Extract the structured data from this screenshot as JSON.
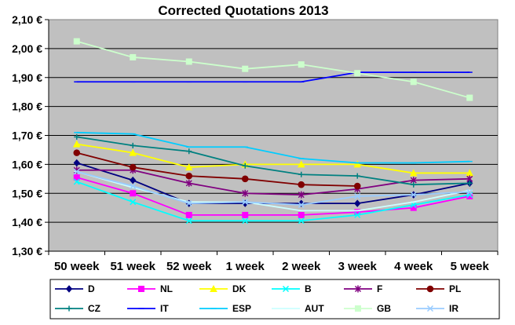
{
  "chart_data": {
    "type": "line",
    "title": "Corrected Quotations 2013",
    "xlabel": "",
    "ylabel": "",
    "categories": [
      "50 week",
      "51 week",
      "52 week",
      "1 week",
      "2 week",
      "3 week",
      "4 week",
      "5 week"
    ],
    "yticks": [
      "1,30 €",
      "1,40 €",
      "1,50 €",
      "1,60 €",
      "1,70 €",
      "1,80 €",
      "1,90 €",
      "2,00 €",
      "2,10 €"
    ],
    "ylim": [
      1.3,
      2.1
    ],
    "grid": "horizontal",
    "legend_position": "bottom",
    "plot_background": "#c0c0c0",
    "series": [
      {
        "name": "D",
        "color": "#000080",
        "marker": "diamond",
        "values": [
          1.605,
          1.545,
          1.465,
          1.465,
          1.465,
          1.465,
          1.495,
          1.535
        ]
      },
      {
        "name": "NL",
        "color": "#ff00ff",
        "marker": "square",
        "values": [
          1.555,
          1.5,
          1.425,
          1.425,
          1.425,
          1.435,
          1.45,
          1.49
        ]
      },
      {
        "name": "DK",
        "color": "#ffff00",
        "marker": "triangle",
        "values": [
          1.67,
          1.64,
          1.59,
          1.6,
          1.6,
          1.6,
          1.57,
          1.57
        ]
      },
      {
        "name": "B",
        "color": "#00ffff",
        "marker": "x",
        "values": [
          1.54,
          1.47,
          1.405,
          1.405,
          1.405,
          1.425,
          1.46,
          1.495
        ]
      },
      {
        "name": "F",
        "color": "#800080",
        "marker": "star",
        "values": [
          1.58,
          1.58,
          1.535,
          1.5,
          1.495,
          1.515,
          1.545,
          1.55
        ]
      },
      {
        "name": "PL",
        "color": "#800000",
        "marker": "circle",
        "values": [
          1.64,
          1.59,
          1.56,
          1.55,
          1.53,
          1.525,
          null,
          null
        ]
      },
      {
        "name": "CZ",
        "color": "#008080",
        "marker": "plus",
        "values": [
          1.695,
          1.665,
          1.645,
          1.595,
          1.565,
          1.56,
          1.53,
          1.535
        ]
      },
      {
        "name": "IT",
        "color": "#0000ff",
        "marker": "dash",
        "values": [
          1.885,
          1.885,
          1.885,
          1.885,
          1.885,
          1.918,
          1.918,
          1.918
        ]
      },
      {
        "name": "ESP",
        "color": "#00ccff",
        "marker": "dash",
        "values": [
          1.71,
          1.705,
          1.66,
          1.66,
          1.62,
          1.605,
          1.605,
          1.61
        ]
      },
      {
        "name": "AUT",
        "color": "#ccffff",
        "marker": "dash",
        "values": [
          1.575,
          1.52,
          1.47,
          1.47,
          1.44,
          1.44,
          1.47,
          1.51
        ]
      },
      {
        "name": "GB",
        "color": "#ccffcc",
        "marker": "square",
        "values": [
          2.025,
          1.97,
          1.955,
          1.93,
          1.945,
          1.915,
          1.885,
          1.83
        ]
      },
      {
        "name": "IR",
        "color": "#99ccff",
        "marker": "x",
        "values": [
          1.575,
          1.525,
          1.465,
          1.47,
          1.46,
          1.49,
          1.495,
          1.505
        ]
      }
    ]
  }
}
